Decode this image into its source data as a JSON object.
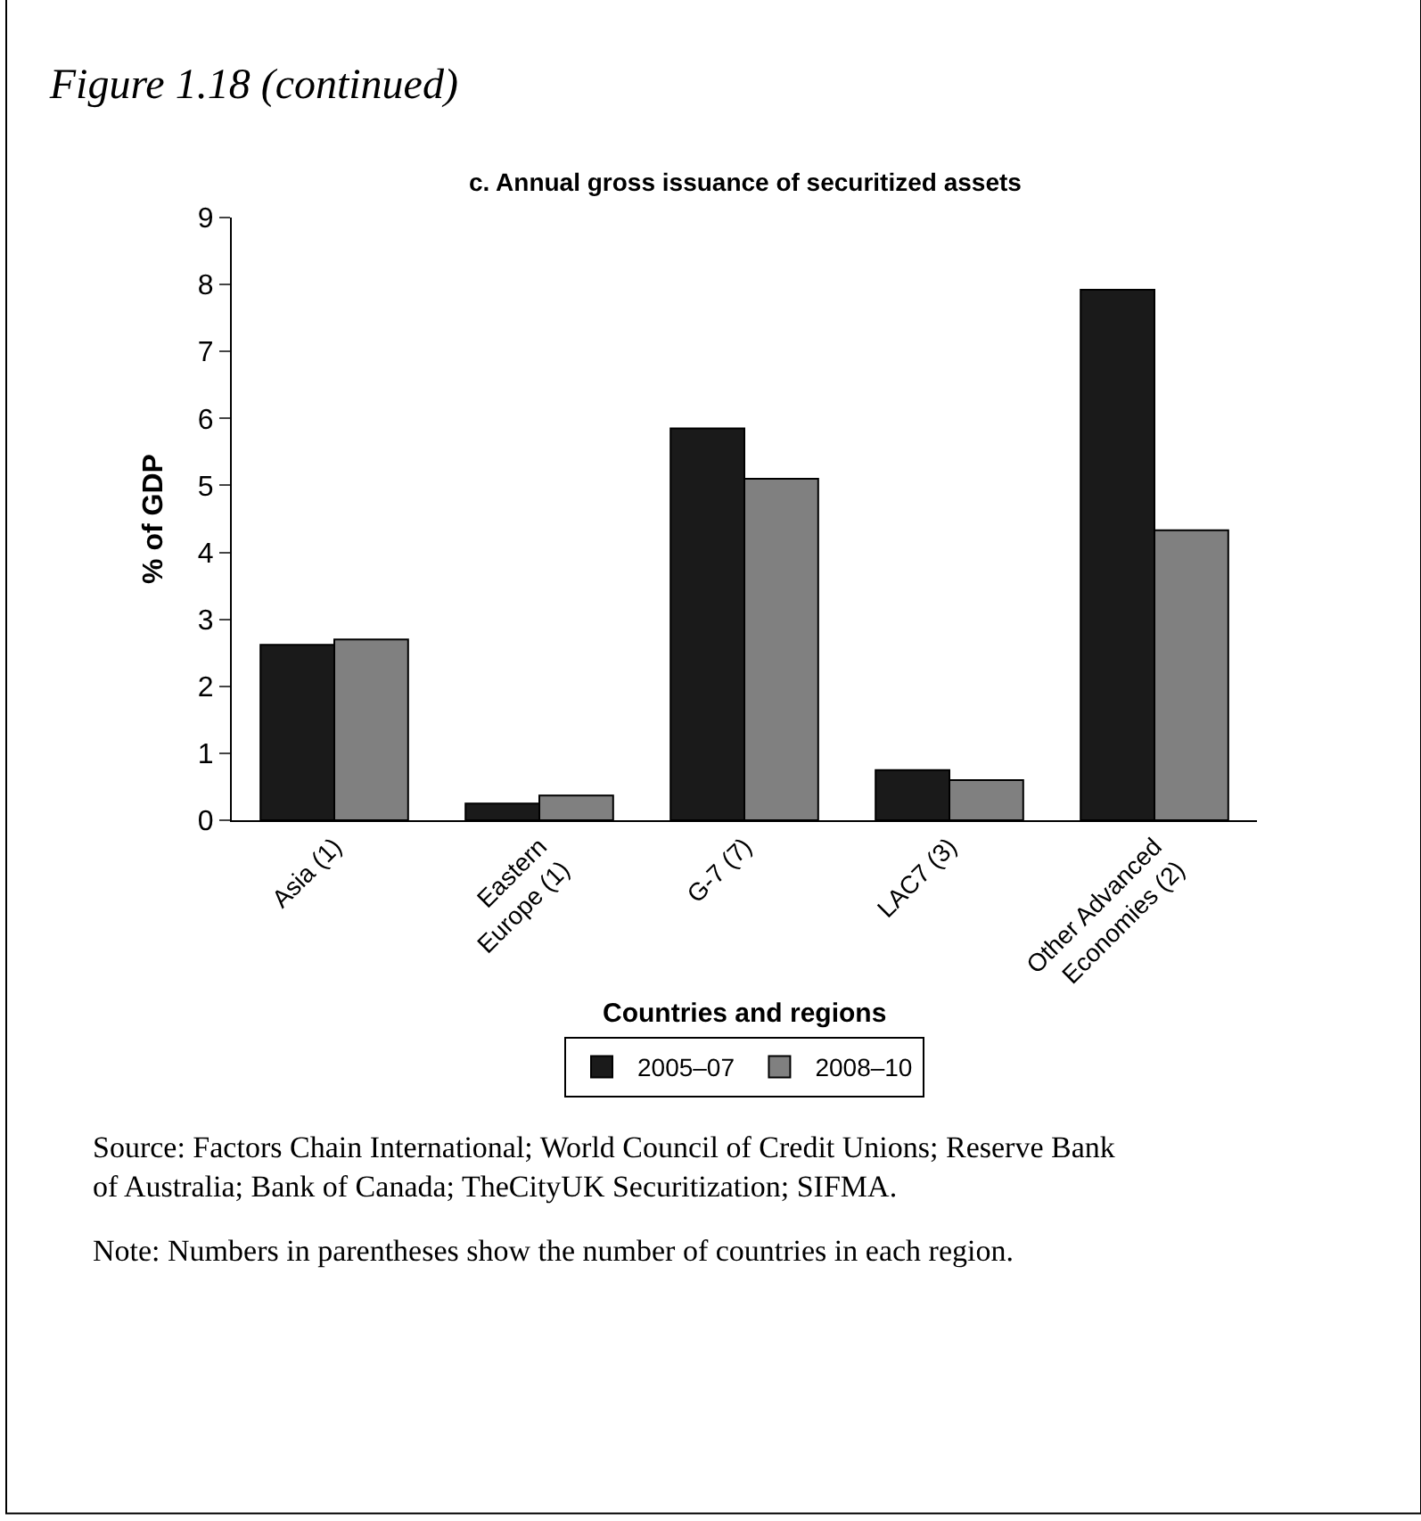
{
  "chart_data": {
    "type": "bar",
    "title": "Figure 1.18 (continued)",
    "subtitle": "c. Annual gross issuance of securitized assets",
    "xlabel": "Countries and regions",
    "ylabel": "% of GDP",
    "categories": [
      "Asia (1)",
      "Eastern\nEurope (1)",
      "G-7 (7)",
      "LAC7 (3)",
      "Other Advanced\nEconomies (2)"
    ],
    "series": [
      {
        "name": "2005–07",
        "color": "#1a1a1a",
        "values": [
          2.62,
          0.25,
          5.85,
          0.75,
          7.92
        ]
      },
      {
        "name": "2008–10",
        "color": "#808080",
        "values": [
          2.7,
          0.37,
          5.1,
          0.6,
          4.33
        ]
      }
    ],
    "ylim": [
      0,
      9
    ],
    "yticks": [
      0,
      1,
      2,
      3,
      4,
      5,
      6,
      7,
      8,
      9
    ],
    "grid": false,
    "legend": "bottom",
    "annotations": [
      "Source: Factors Chain International; World Council of Credit Unions; Reserve Bank of Australia; Bank of Canada; TheCityUK Securitization; SIFMA.",
      "Note: Numbers in parentheses show the number of countries in each region."
    ]
  }
}
